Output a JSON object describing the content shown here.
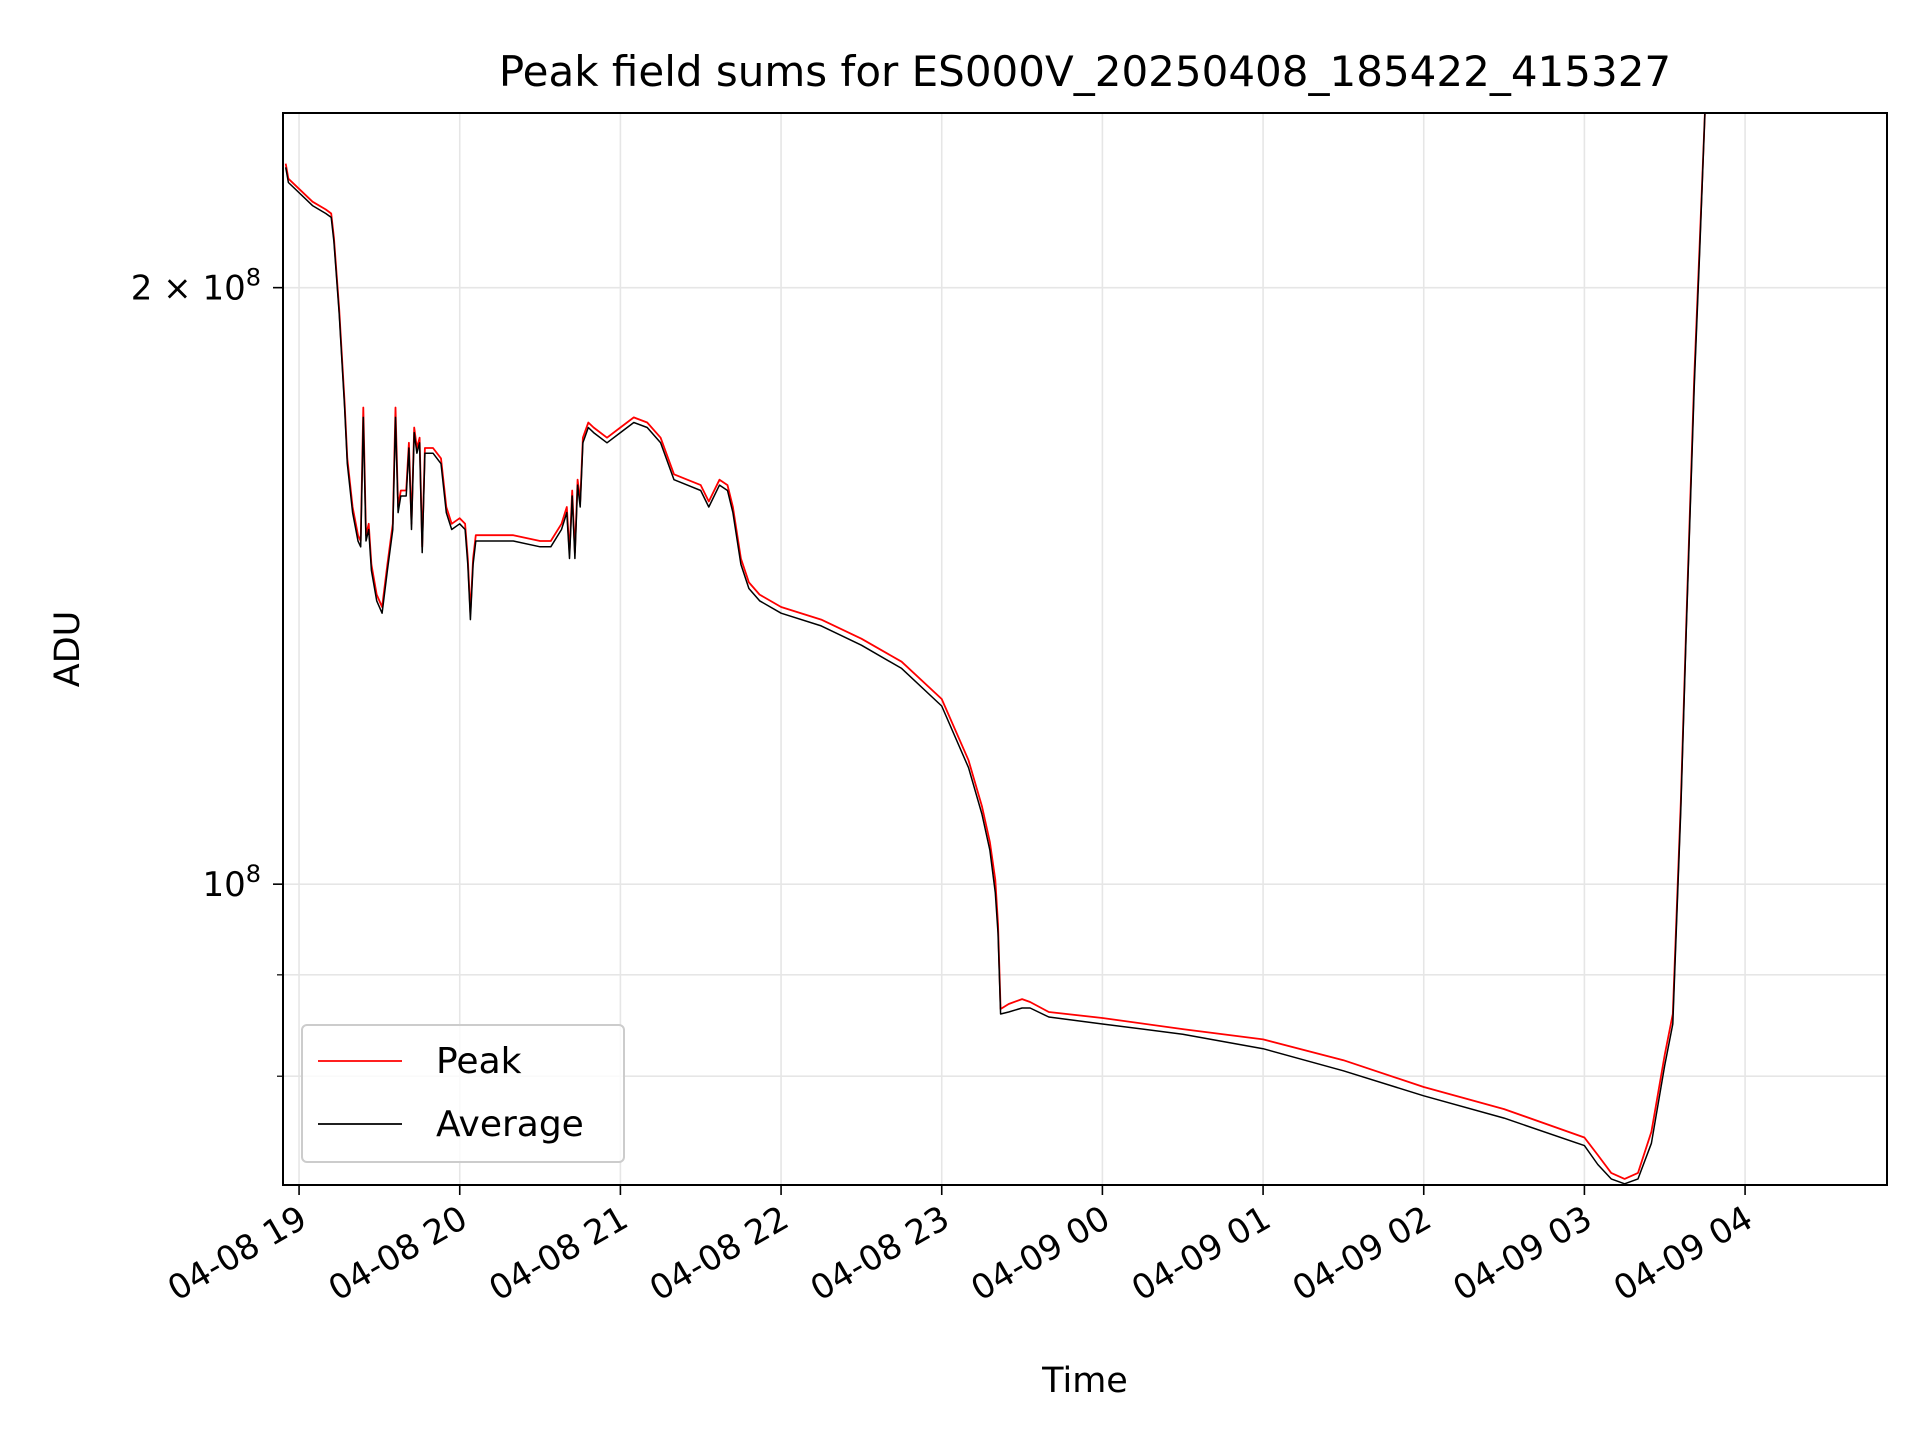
{
  "chart_data": {
    "type": "line",
    "title": "Peak field sums for ES000V_20250408_185422_415327",
    "xlabel": "Time",
    "ylabel": "ADU",
    "y_scale": "log",
    "grid": true,
    "legend_position": "lower-left",
    "xlim": [
      "2025-04-08 18:54",
      "2025-04-09 04:53"
    ],
    "ylim": [
      70500000,
      245000000
    ],
    "x_ticks": [
      {
        "time": "2025-04-08 19:00",
        "label": "04-08 19"
      },
      {
        "time": "2025-04-08 20:00",
        "label": "04-08 20"
      },
      {
        "time": "2025-04-08 21:00",
        "label": "04-08 21"
      },
      {
        "time": "2025-04-08 22:00",
        "label": "04-08 22"
      },
      {
        "time": "2025-04-08 23:00",
        "label": "04-08 23"
      },
      {
        "time": "2025-04-09 00:00",
        "label": "04-09 00"
      },
      {
        "time": "2025-04-09 01:00",
        "label": "04-09 01"
      },
      {
        "time": "2025-04-09 02:00",
        "label": "04-09 02"
      },
      {
        "time": "2025-04-09 03:00",
        "label": "04-09 03"
      },
      {
        "time": "2025-04-09 04:00",
        "label": "04-09 04"
      }
    ],
    "y_major_ticks": [
      {
        "value": 100000000,
        "label_base": "10",
        "label_exp": "8"
      },
      {
        "value": 200000000,
        "label_base": "2 × 10",
        "label_exp": "8"
      }
    ],
    "y_minor_ticks": [
      80000000,
      90000000
    ],
    "series": [
      {
        "name": "Peak",
        "color": "#ff0000",
        "points": [
          [
            "2025-04-08 18:55",
            231000000
          ],
          [
            "2025-04-08 18:56",
            227000000
          ],
          [
            "2025-04-08 19:05",
            221000000
          ],
          [
            "2025-04-08 19:10",
            219000000
          ],
          [
            "2025-04-08 19:12",
            218000000
          ],
          [
            "2025-04-08 19:13",
            212000000
          ],
          [
            "2025-04-08 19:15",
            195000000
          ],
          [
            "2025-04-08 19:17",
            175000000
          ],
          [
            "2025-04-08 19:18",
            164000000
          ],
          [
            "2025-04-08 19:20",
            155000000
          ],
          [
            "2025-04-08 19:22",
            150000000
          ],
          [
            "2025-04-08 19:23",
            149000000
          ],
          [
            "2025-04-08 19:24",
            174000000
          ],
          [
            "2025-04-08 19:25",
            150000000
          ],
          [
            "2025-04-08 19:26",
            152000000
          ],
          [
            "2025-04-08 19:27",
            145000000
          ],
          [
            "2025-04-08 19:29",
            140000000
          ],
          [
            "2025-04-08 19:31",
            138000000
          ],
          [
            "2025-04-08 19:33",
            145000000
          ],
          [
            "2025-04-08 19:35",
            152000000
          ],
          [
            "2025-04-08 19:36",
            174000000
          ],
          [
            "2025-04-08 19:37",
            155000000
          ],
          [
            "2025-04-08 19:38",
            158000000
          ],
          [
            "2025-04-08 19:40",
            158000000
          ],
          [
            "2025-04-08 19:41",
            167000000
          ],
          [
            "2025-04-08 19:42",
            152000000
          ],
          [
            "2025-04-08 19:43",
            170000000
          ],
          [
            "2025-04-08 19:44",
            166000000
          ],
          [
            "2025-04-08 19:45",
            168000000
          ],
          [
            "2025-04-08 19:46",
            148000000
          ],
          [
            "2025-04-08 19:47",
            166000000
          ],
          [
            "2025-04-08 19:50",
            166000000
          ],
          [
            "2025-04-08 19:53",
            164000000
          ],
          [
            "2025-04-08 19:55",
            155000000
          ],
          [
            "2025-04-08 19:57",
            152000000
          ],
          [
            "2025-04-08 20:00",
            153000000
          ],
          [
            "2025-04-08 20:02",
            152000000
          ],
          [
            "2025-04-08 20:03",
            146000000
          ],
          [
            "2025-04-08 20:04",
            137000000
          ],
          [
            "2025-04-08 20:05",
            146000000
          ],
          [
            "2025-04-08 20:06",
            150000000
          ],
          [
            "2025-04-08 20:10",
            150000000
          ],
          [
            "2025-04-08 20:20",
            150000000
          ],
          [
            "2025-04-08 20:30",
            149000000
          ],
          [
            "2025-04-08 20:34",
            149000000
          ],
          [
            "2025-04-08 20:38",
            152000000
          ],
          [
            "2025-04-08 20:40",
            155000000
          ],
          [
            "2025-04-08 20:41",
            147000000
          ],
          [
            "2025-04-08 20:42",
            158000000
          ],
          [
            "2025-04-08 20:43",
            147000000
          ],
          [
            "2025-04-08 20:44",
            160000000
          ],
          [
            "2025-04-08 20:45",
            156000000
          ],
          [
            "2025-04-08 20:46",
            168000000
          ],
          [
            "2025-04-08 20:48",
            171000000
          ],
          [
            "2025-04-08 20:50",
            170000000
          ],
          [
            "2025-04-08 20:55",
            168000000
          ],
          [
            "2025-04-08 21:00",
            170000000
          ],
          [
            "2025-04-08 21:05",
            172000000
          ],
          [
            "2025-04-08 21:10",
            171000000
          ],
          [
            "2025-04-08 21:15",
            168000000
          ],
          [
            "2025-04-08 21:20",
            161000000
          ],
          [
            "2025-04-08 21:25",
            160000000
          ],
          [
            "2025-04-08 21:30",
            159000000
          ],
          [
            "2025-04-08 21:33",
            156000000
          ],
          [
            "2025-04-08 21:37",
            160000000
          ],
          [
            "2025-04-08 21:40",
            159000000
          ],
          [
            "2025-04-08 21:42",
            155000000
          ],
          [
            "2025-04-08 21:45",
            146000000
          ],
          [
            "2025-04-08 21:48",
            142000000
          ],
          [
            "2025-04-08 21:52",
            140000000
          ],
          [
            "2025-04-08 22:00",
            138000000
          ],
          [
            "2025-04-08 22:15",
            136000000
          ],
          [
            "2025-04-08 22:30",
            133000000
          ],
          [
            "2025-04-08 22:45",
            129500000
          ],
          [
            "2025-04-08 23:00",
            124000000
          ],
          [
            "2025-04-08 23:10",
            115500000
          ],
          [
            "2025-04-08 23:15",
            109500000
          ],
          [
            "2025-04-08 23:18",
            105000000
          ],
          [
            "2025-04-08 23:20",
            100500000
          ],
          [
            "2025-04-08 23:21",
            95500000
          ],
          [
            "2025-04-08 23:22",
            86500000
          ],
          [
            "2025-04-08 23:25",
            87000000
          ],
          [
            "2025-04-08 23:30",
            87500000
          ],
          [
            "2025-04-08 23:33",
            87200000
          ],
          [
            "2025-04-08 23:40",
            86200000
          ],
          [
            "2025-04-09 00:00",
            85600000
          ],
          [
            "2025-04-09 00:30",
            84500000
          ],
          [
            "2025-04-09 01:00",
            83500000
          ],
          [
            "2025-04-09 01:30",
            81500000
          ],
          [
            "2025-04-09 02:00",
            79000000
          ],
          [
            "2025-04-09 02:30",
            77000000
          ],
          [
            "2025-04-09 03:00",
            74500000
          ],
          [
            "2025-04-09 03:05",
            73000000
          ],
          [
            "2025-04-09 03:10",
            71500000
          ],
          [
            "2025-04-09 03:15",
            71000000
          ],
          [
            "2025-04-09 03:20",
            71500000
          ],
          [
            "2025-04-09 03:25",
            75000000
          ],
          [
            "2025-04-09 03:30",
            82000000
          ],
          [
            "2025-04-09 03:33",
            86000000
          ],
          [
            "2025-04-09 03:36",
            110000000
          ],
          [
            "2025-04-09 03:38",
            135000000
          ],
          [
            "2025-04-09 03:41",
            180000000
          ],
          [
            "2025-04-09 03:43",
            210000000
          ],
          [
            "2025-04-09 03:45",
            245000000
          ],
          [
            "2025-04-09 04:53",
            245000000
          ]
        ]
      },
      {
        "name": "Average",
        "color": "#000000",
        "points": [
          [
            "2025-04-08 18:55",
            230000000
          ],
          [
            "2025-04-08 18:56",
            226000000
          ],
          [
            "2025-04-08 19:05",
            220000000
          ],
          [
            "2025-04-08 19:10",
            218000000
          ],
          [
            "2025-04-08 19:12",
            217000000
          ],
          [
            "2025-04-08 19:13",
            211000000
          ],
          [
            "2025-04-08 19:15",
            194000000
          ],
          [
            "2025-04-08 19:17",
            174000000
          ],
          [
            "2025-04-08 19:18",
            163000000
          ],
          [
            "2025-04-08 19:20",
            154000000
          ],
          [
            "2025-04-08 19:22",
            149000000
          ],
          [
            "2025-04-08 19:23",
            148000000
          ],
          [
            "2025-04-08 19:24",
            172000000
          ],
          [
            "2025-04-08 19:25",
            149000000
          ],
          [
            "2025-04-08 19:26",
            151000000
          ],
          [
            "2025-04-08 19:27",
            144000000
          ],
          [
            "2025-04-08 19:29",
            139000000
          ],
          [
            "2025-04-08 19:31",
            137000000
          ],
          [
            "2025-04-08 19:33",
            144000000
          ],
          [
            "2025-04-08 19:35",
            151000000
          ],
          [
            "2025-04-08 19:36",
            172000000
          ],
          [
            "2025-04-08 19:37",
            154000000
          ],
          [
            "2025-04-08 19:38",
            157000000
          ],
          [
            "2025-04-08 19:40",
            157000000
          ],
          [
            "2025-04-08 19:41",
            166000000
          ],
          [
            "2025-04-08 19:42",
            151000000
          ],
          [
            "2025-04-08 19:43",
            169000000
          ],
          [
            "2025-04-08 19:44",
            165000000
          ],
          [
            "2025-04-08 19:45",
            167000000
          ],
          [
            "2025-04-08 19:46",
            147000000
          ],
          [
            "2025-04-08 19:47",
            165000000
          ],
          [
            "2025-04-08 19:50",
            165000000
          ],
          [
            "2025-04-08 19:53",
            163000000
          ],
          [
            "2025-04-08 19:55",
            154000000
          ],
          [
            "2025-04-08 19:57",
            151000000
          ],
          [
            "2025-04-08 20:00",
            152000000
          ],
          [
            "2025-04-08 20:02",
            151000000
          ],
          [
            "2025-04-08 20:03",
            145000000
          ],
          [
            "2025-04-08 20:04",
            136000000
          ],
          [
            "2025-04-08 20:05",
            145000000
          ],
          [
            "2025-04-08 20:06",
            149000000
          ],
          [
            "2025-04-08 20:10",
            149000000
          ],
          [
            "2025-04-08 20:20",
            149000000
          ],
          [
            "2025-04-08 20:30",
            148000000
          ],
          [
            "2025-04-08 20:34",
            148000000
          ],
          [
            "2025-04-08 20:38",
            151000000
          ],
          [
            "2025-04-08 20:40",
            154000000
          ],
          [
            "2025-04-08 20:41",
            146000000
          ],
          [
            "2025-04-08 20:42",
            157000000
          ],
          [
            "2025-04-08 20:43",
            146000000
          ],
          [
            "2025-04-08 20:44",
            159000000
          ],
          [
            "2025-04-08 20:45",
            155000000
          ],
          [
            "2025-04-08 20:46",
            167000000
          ],
          [
            "2025-04-08 20:48",
            170000000
          ],
          [
            "2025-04-08 20:50",
            169000000
          ],
          [
            "2025-04-08 20:55",
            167000000
          ],
          [
            "2025-04-08 21:00",
            169000000
          ],
          [
            "2025-04-08 21:05",
            171000000
          ],
          [
            "2025-04-08 21:10",
            170000000
          ],
          [
            "2025-04-08 21:15",
            167000000
          ],
          [
            "2025-04-08 21:20",
            160000000
          ],
          [
            "2025-04-08 21:25",
            159000000
          ],
          [
            "2025-04-08 21:30",
            158000000
          ],
          [
            "2025-04-08 21:33",
            155000000
          ],
          [
            "2025-04-08 21:37",
            159000000
          ],
          [
            "2025-04-08 21:40",
            158000000
          ],
          [
            "2025-04-08 21:42",
            154000000
          ],
          [
            "2025-04-08 21:45",
            145000000
          ],
          [
            "2025-04-08 21:48",
            141000000
          ],
          [
            "2025-04-08 21:52",
            139000000
          ],
          [
            "2025-04-08 22:00",
            137000000
          ],
          [
            "2025-04-08 22:15",
            135000000
          ],
          [
            "2025-04-08 22:30",
            132000000
          ],
          [
            "2025-04-08 22:45",
            128500000
          ],
          [
            "2025-04-08 23:00",
            123000000
          ],
          [
            "2025-04-08 23:10",
            114500000
          ],
          [
            "2025-04-08 23:15",
            108500000
          ],
          [
            "2025-04-08 23:18",
            104000000
          ],
          [
            "2025-04-08 23:20",
            99000000
          ],
          [
            "2025-04-08 23:21",
            94500000
          ],
          [
            "2025-04-08 23:22",
            86000000
          ],
          [
            "2025-04-08 23:25",
            86200000
          ],
          [
            "2025-04-08 23:30",
            86600000
          ],
          [
            "2025-04-08 23:33",
            86600000
          ],
          [
            "2025-04-08 23:40",
            85700000
          ],
          [
            "2025-04-09 00:00",
            85000000
          ],
          [
            "2025-04-09 00:30",
            84000000
          ],
          [
            "2025-04-09 01:00",
            82600000
          ],
          [
            "2025-04-09 01:30",
            80500000
          ],
          [
            "2025-04-09 02:00",
            78200000
          ],
          [
            "2025-04-09 02:30",
            76200000
          ],
          [
            "2025-04-09 03:00",
            73800000
          ],
          [
            "2025-04-09 03:05",
            72200000
          ],
          [
            "2025-04-09 03:10",
            71000000
          ],
          [
            "2025-04-09 03:15",
            70600000
          ],
          [
            "2025-04-09 03:20",
            71000000
          ],
          [
            "2025-04-09 03:25",
            74000000
          ],
          [
            "2025-04-09 03:30",
            81000000
          ],
          [
            "2025-04-09 03:33",
            85000000
          ],
          [
            "2025-04-09 03:36",
            109000000
          ],
          [
            "2025-04-09 03:38",
            134000000
          ],
          [
            "2025-04-09 03:41",
            178000000
          ],
          [
            "2025-04-09 03:43",
            208000000
          ],
          [
            "2025-04-09 03:45",
            245000000
          ],
          [
            "2025-04-09 04:53",
            245000000
          ]
        ]
      }
    ]
  }
}
